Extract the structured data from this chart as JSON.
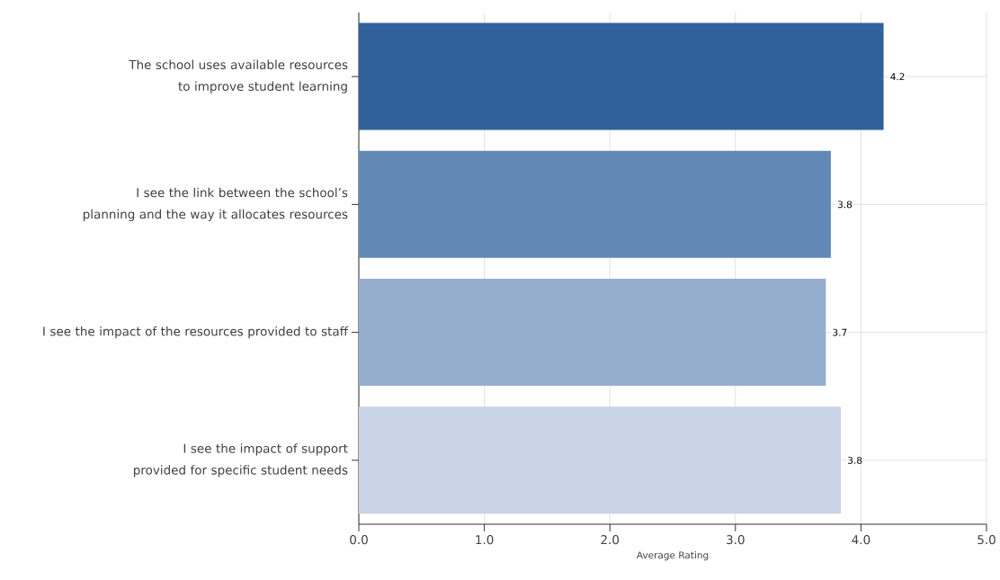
{
  "chart_data": {
    "type": "bar",
    "orientation": "horizontal",
    "xlabel": "Average Rating",
    "categories": [
      "The school uses available resources to improve student learning",
      "I see the link between the school’s planning and the way it allocates resources",
      "I see the impact of the resources provided to staff",
      "I see the impact of support provided for specific student needs"
    ],
    "values": [
      4.18,
      3.76,
      3.72,
      3.84
    ],
    "value_labels": [
      "4.2",
      "3.8",
      "3.7",
      "3.8"
    ],
    "colors": [
      "#30619a",
      "#6289b5",
      "#95aecd",
      "#c8d4e5"
    ],
    "xlim": [
      0,
      5
    ],
    "xticks": [
      {
        "value": 0,
        "label": "0.0"
      },
      {
        "value": 1,
        "label": "1.0"
      },
      {
        "value": 2,
        "label": "2.0"
      },
      {
        "value": 3,
        "label": "3.0"
      },
      {
        "value": 4,
        "label": "4.0"
      },
      {
        "value": 5,
        "label": "5.0"
      }
    ],
    "grid": true
  }
}
